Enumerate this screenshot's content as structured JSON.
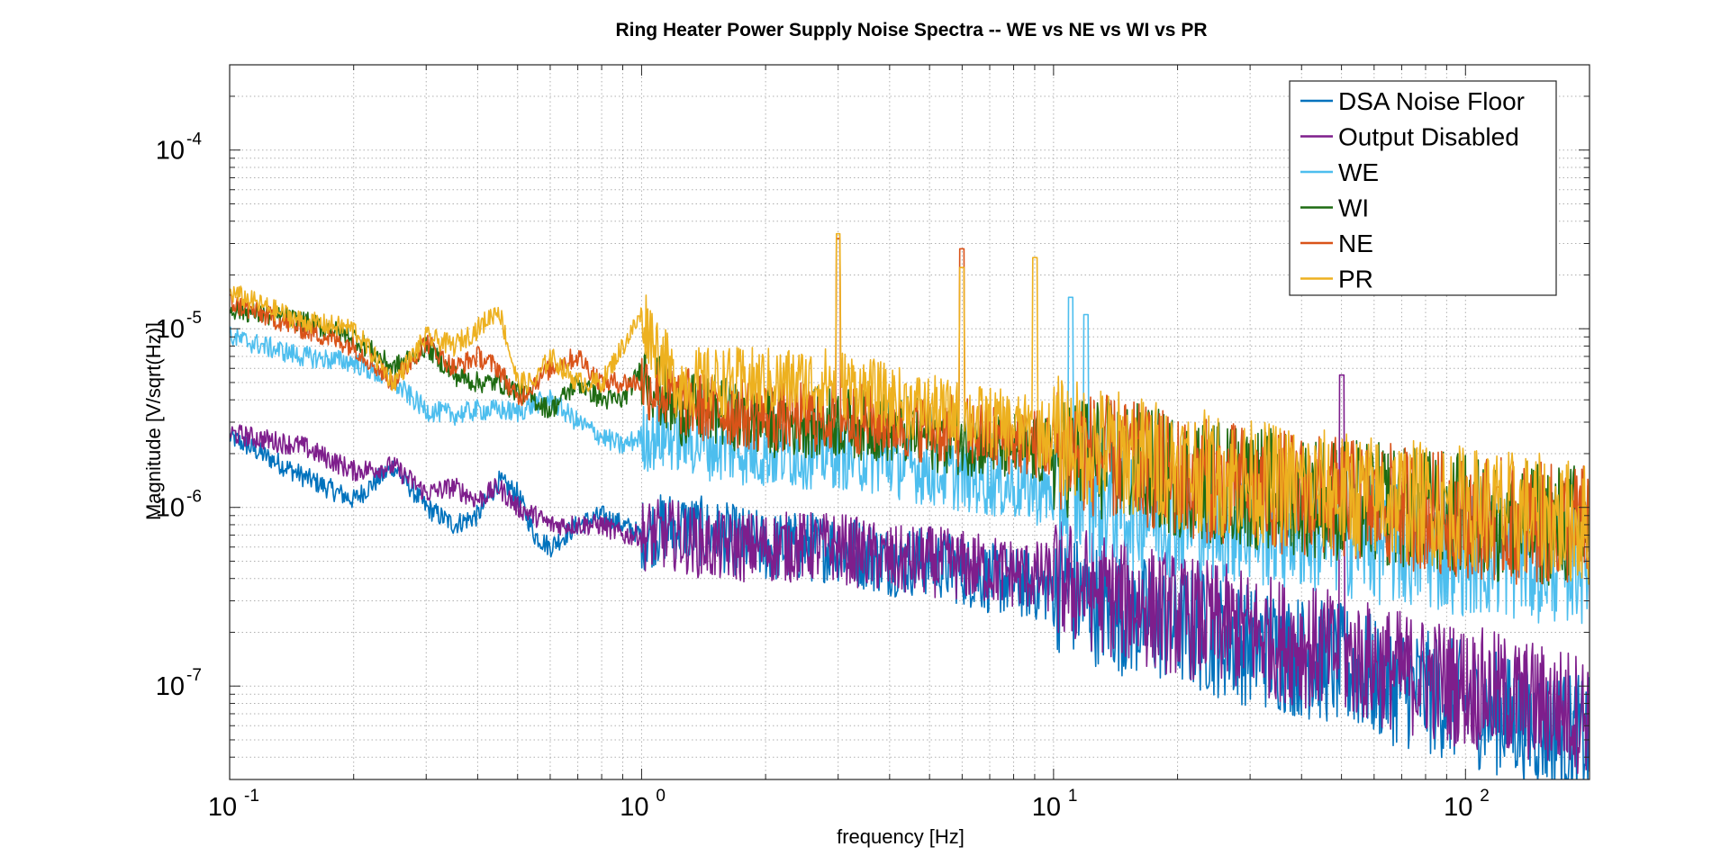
{
  "chart_data": {
    "type": "line",
    "title": "Ring Heater Power Supply Noise Spectra -- WE vs NE vs WI vs PR",
    "xlabel": "frequency [Hz]",
    "ylabel": "Magnitude [V/sqrt(Hz)]",
    "xscale": "log",
    "yscale": "log",
    "xlim": [
      0.1,
      200
    ],
    "ylim": [
      3e-08,
      0.0003
    ],
    "grid": true,
    "legend_position": "top-right",
    "x_ticks": [
      {
        "value": 0.1,
        "base": "10",
        "exp": "-1"
      },
      {
        "value": 1,
        "base": "10",
        "exp": "0"
      },
      {
        "value": 10,
        "base": "10",
        "exp": "1"
      },
      {
        "value": 100,
        "base": "10",
        "exp": "2"
      }
    ],
    "y_ticks": [
      {
        "value": 1e-07,
        "base": "10",
        "exp": "-7"
      },
      {
        "value": 1e-06,
        "base": "10",
        "exp": "-6"
      },
      {
        "value": 1e-05,
        "base": "10",
        "exp": "-5"
      },
      {
        "value": 0.0001,
        "base": "10",
        "exp": "-4"
      }
    ],
    "series": [
      {
        "name": "DSA Noise Floor",
        "color": "#0072BD",
        "x": [
          0.1,
          0.15,
          0.2,
          0.25,
          0.3,
          0.35,
          0.4,
          0.45,
          0.5,
          0.55,
          0.6,
          0.7,
          0.8,
          0.9,
          1.0,
          1.2,
          1.5,
          2.0,
          3.0,
          4.0,
          5.0,
          7.0,
          10,
          15,
          20,
          30,
          50,
          70,
          100,
          150,
          200
        ],
        "y": [
          2.5e-06,
          1.5e-06,
          1.1e-06,
          1.7e-06,
          1e-06,
          8e-07,
          9e-07,
          1.4e-06,
          1.2e-06,
          7e-07,
          6e-07,
          8e-07,
          9e-07,
          8e-07,
          7e-07,
          8e-07,
          7e-07,
          6e-07,
          6e-07,
          5e-07,
          5e-07,
          4e-07,
          3.5e-07,
          2.5e-07,
          2.2e-07,
          1.7e-07,
          1.3e-07,
          1e-07,
          8e-08,
          6e-08,
          5e-08
        ]
      },
      {
        "name": "Output Disabled",
        "color": "#7E1E8C",
        "x": [
          0.1,
          0.15,
          0.2,
          0.25,
          0.3,
          0.35,
          0.4,
          0.45,
          0.5,
          0.55,
          0.6,
          0.7,
          0.8,
          0.9,
          1.0,
          1.2,
          1.5,
          2.0,
          3.0,
          4.0,
          5.0,
          7.0,
          10,
          15,
          20,
          30,
          50,
          70,
          100,
          150,
          200
        ],
        "y": [
          2.6e-06,
          2.2e-06,
          1.6e-06,
          1.7e-06,
          1.2e-06,
          1.3e-06,
          1.1e-06,
          1.3e-06,
          1e-06,
          9e-07,
          8e-07,
          8e-07,
          8e-07,
          7e-07,
          7e-07,
          7e-07,
          6e-07,
          6e-07,
          6e-07,
          5e-07,
          5e-07,
          4.5e-07,
          4e-07,
          3e-07,
          2.5e-07,
          2e-07,
          1.5e-07,
          1.2e-07,
          1e-07,
          8e-08,
          7e-08
        ]
      },
      {
        "name": "WE",
        "color": "#4DBEEE",
        "x": [
          0.1,
          0.15,
          0.2,
          0.25,
          0.3,
          0.35,
          0.4,
          0.45,
          0.5,
          0.55,
          0.6,
          0.7,
          0.8,
          0.9,
          1.0,
          1.2,
          1.5,
          2.0,
          3.0,
          4.0,
          5.0,
          7.0,
          10,
          15,
          20,
          30,
          50,
          70,
          100,
          150,
          200
        ],
        "y": [
          9e-06,
          7e-06,
          6.5e-06,
          5e-06,
          3.5e-06,
          3.3e-06,
          3.5e-06,
          3.5e-06,
          3.4e-06,
          3.8e-06,
          4e-06,
          3e-06,
          2.5e-06,
          2.2e-06,
          2.5e-06,
          2.5e-06,
          2.2e-06,
          2e-06,
          2e-06,
          1.8e-06,
          1.6e-06,
          1.4e-06,
          1.2e-06,
          1e-06,
          9e-07,
          8e-07,
          7e-07,
          6e-07,
          5.5e-07,
          5e-07,
          5e-07
        ]
      },
      {
        "name": "WI",
        "color": "#1E6B12",
        "x": [
          0.1,
          0.15,
          0.2,
          0.25,
          0.3,
          0.35,
          0.4,
          0.45,
          0.5,
          0.55,
          0.6,
          0.7,
          0.8,
          0.9,
          1.0,
          1.2,
          1.5,
          2.0,
          3.0,
          4.0,
          5.0,
          7.0,
          10,
          15,
          20,
          30,
          50,
          70,
          100,
          150,
          200
        ],
        "y": [
          1.3e-05,
          1.1e-05,
          9e-06,
          6e-06,
          8e-06,
          5.5e-06,
          5e-06,
          5e-06,
          4.5e-06,
          4e-06,
          3.5e-06,
          5e-06,
          4e-06,
          4e-06,
          6e-06,
          3.5e-06,
          3.5e-06,
          3e-06,
          3e-06,
          2.8e-06,
          2.5e-06,
          2.3e-06,
          2e-06,
          1.8e-06,
          1.5e-06,
          1.3e-06,
          1.1e-06,
          1e-06,
          9e-07,
          8e-07,
          8e-07
        ]
      },
      {
        "name": "NE",
        "color": "#D95319",
        "x": [
          0.1,
          0.15,
          0.2,
          0.25,
          0.3,
          0.35,
          0.4,
          0.45,
          0.5,
          0.55,
          0.6,
          0.7,
          0.8,
          0.9,
          1.0,
          1.2,
          1.5,
          2.0,
          3.0,
          4.0,
          5.0,
          7.0,
          10,
          15,
          20,
          30,
          50,
          70,
          100,
          150,
          200
        ],
        "y": [
          1.4e-05,
          1e-05,
          8e-06,
          5e-06,
          8.5e-06,
          6e-06,
          7e-06,
          6e-06,
          4e-06,
          5e-06,
          6e-06,
          7e-06,
          5e-06,
          5e-06,
          5e-06,
          4e-06,
          3.5e-06,
          3.2e-06,
          3.2e-06,
          3e-06,
          2.8e-06,
          2.5e-06,
          2.2e-06,
          1.8e-06,
          1.5e-06,
          1.3e-06,
          1.1e-06,
          1e-06,
          9e-07,
          8e-07,
          8e-07
        ]
      },
      {
        "name": "PR",
        "color": "#EDB120",
        "x": [
          0.1,
          0.15,
          0.2,
          0.25,
          0.3,
          0.35,
          0.4,
          0.45,
          0.5,
          0.55,
          0.6,
          0.7,
          0.8,
          0.9,
          1.0,
          1.2,
          1.5,
          2.0,
          3.0,
          4.0,
          5.0,
          7.0,
          10,
          15,
          20,
          30,
          50,
          70,
          100,
          150,
          200
        ],
        "y": [
          1.6e-05,
          1.1e-05,
          1e-05,
          5e-06,
          9e-06,
          8e-06,
          1e-05,
          1.3e-05,
          5e-06,
          5e-06,
          7e-06,
          5e-06,
          5e-06,
          8e-06,
          1.2e-05,
          5e-06,
          5e-06,
          5e-06,
          5e-06,
          4e-06,
          3.5e-06,
          3e-06,
          2.5e-06,
          2e-06,
          1.7e-06,
          1.4e-06,
          1.2e-06,
          1.1e-06,
          1e-06,
          9e-07,
          8e-07
        ]
      }
    ],
    "annotations": [
      {
        "series": "NE",
        "x": 3.0,
        "y": 3.2e-05
      },
      {
        "series": "PR",
        "x": 3.0,
        "y": 3.4e-05
      },
      {
        "series": "NE",
        "x": 6.0,
        "y": 2.8e-05
      },
      {
        "series": "PR",
        "x": 6.0,
        "y": 2.2e-05
      },
      {
        "series": "PR",
        "x": 9.0,
        "y": 2.5e-05
      },
      {
        "series": "WE",
        "x": 11.0,
        "y": 1.5e-05
      },
      {
        "series": "WE",
        "x": 12.0,
        "y": 1.2e-05
      },
      {
        "series": "Output Disabled",
        "x": 50.0,
        "y": 5.5e-06
      },
      {
        "series": "NE",
        "x": 120.0,
        "y": 1.3e-06
      }
    ]
  }
}
